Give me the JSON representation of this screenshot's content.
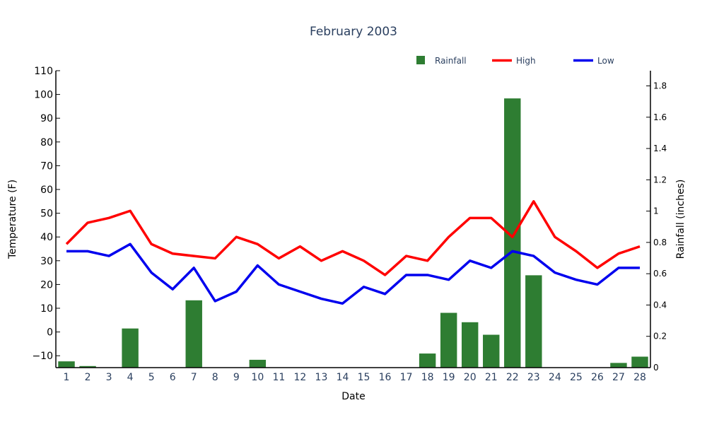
{
  "chart_data": {
    "type": "bar+line",
    "title": "February 2003",
    "xlabel": "Date",
    "ylabel_left": "Temperature (F)",
    "ylabel_right": "Rainfall (inches)",
    "categories": [
      "1",
      "2",
      "3",
      "4",
      "5",
      "6",
      "7",
      "8",
      "9",
      "10",
      "11",
      "12",
      "13",
      "14",
      "15",
      "16",
      "17",
      "18",
      "19",
      "20",
      "21",
      "22",
      "23",
      "24",
      "25",
      "26",
      "27",
      "28"
    ],
    "y_left": {
      "range": [
        -15,
        110
      ],
      "ticks": [
        -10,
        0,
        10,
        20,
        30,
        40,
        50,
        60,
        70,
        80,
        90,
        100,
        110
      ],
      "tick_labels": [
        "−10",
        "0",
        "10",
        "20",
        "30",
        "40",
        "50",
        "60",
        "70",
        "80",
        "90",
        "100",
        "110"
      ]
    },
    "y_right": {
      "range": [
        0,
        1.8
      ],
      "ticks": [
        0,
        0.2,
        0.4,
        0.6,
        0.8,
        1,
        1.2,
        1.4,
        1.6,
        1.8
      ],
      "tick_labels": [
        "0",
        "0.2",
        "0.4",
        "0.6",
        "0.8",
        "1",
        "1.2",
        "1.4",
        "1.6",
        "1.8"
      ]
    },
    "grid": false,
    "legend_position": "top-right",
    "series": [
      {
        "name": "Rainfall",
        "type": "bar",
        "axis": "right",
        "color": "#2e7d32",
        "values": [
          0.04,
          0.01,
          0,
          0.25,
          0,
          0,
          0.43,
          0,
          0,
          0.05,
          0,
          0,
          0,
          0,
          0,
          0,
          0,
          0.09,
          0.35,
          0.29,
          0.21,
          1.72,
          0.59,
          0,
          0,
          0,
          0.03,
          0.07
        ]
      },
      {
        "name": "High",
        "type": "line",
        "axis": "left",
        "color": "#ff0000",
        "values": [
          37,
          46,
          48,
          51,
          37,
          33,
          32,
          31,
          40,
          37,
          31,
          36,
          30,
          34,
          30,
          24,
          32,
          30,
          40,
          48,
          48,
          40,
          55,
          40,
          34,
          27,
          33,
          36
        ]
      },
      {
        "name": "Low",
        "type": "line",
        "axis": "left",
        "color": "#0000ee",
        "values": [
          34,
          34,
          32,
          37,
          25,
          18,
          27,
          13,
          17,
          28,
          20,
          17,
          14,
          12,
          19,
          16,
          24,
          24,
          22,
          30,
          27,
          34,
          32,
          25,
          22,
          20,
          27,
          27
        ]
      }
    ]
  }
}
